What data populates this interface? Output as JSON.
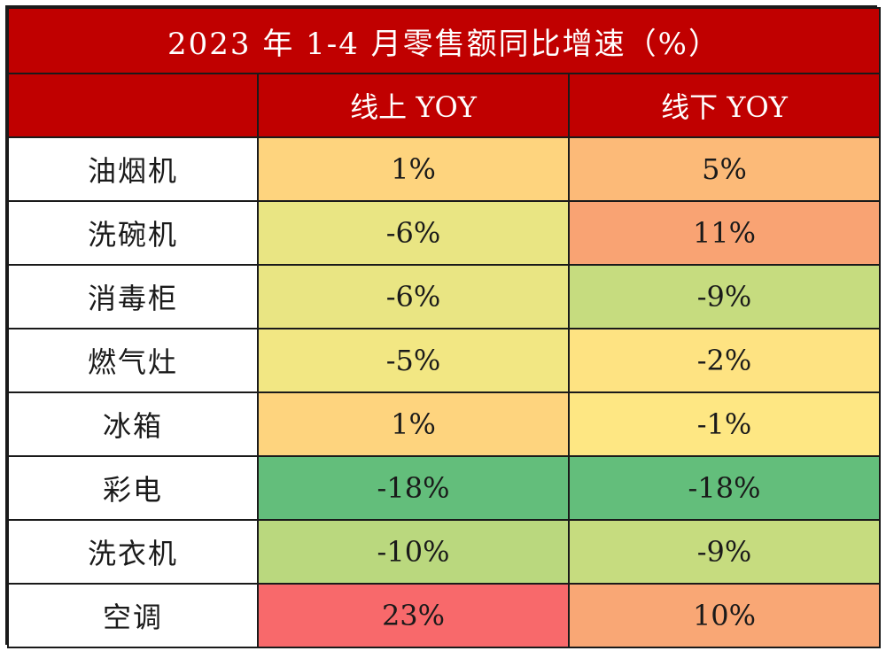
{
  "chart_data": {
    "type": "table",
    "title": "2023 年 1-4 月零售额同比增速（%）",
    "corner": "",
    "columns": [
      "线上 YOY",
      "线下 YOY"
    ],
    "rows": [
      {
        "category": "油烟机",
        "values": [
          "1%",
          "5%"
        ],
        "colors": [
          "#fed47e",
          "#fcba78"
        ]
      },
      {
        "category": "洗碗机",
        "values": [
          "-6%",
          "11%"
        ],
        "colors": [
          "#e9e583",
          "#f9a373"
        ]
      },
      {
        "category": "消毒柜",
        "values": [
          "-6%",
          "-9%"
        ],
        "colors": [
          "#e9e583",
          "#c6dc7f"
        ]
      },
      {
        "category": "燃气灶",
        "values": [
          "-5%",
          "-2%"
        ],
        "colors": [
          "#f2e783",
          "#fee382"
        ]
      },
      {
        "category": "冰箱",
        "values": [
          "1%",
          "-1%"
        ],
        "colors": [
          "#fed47e",
          "#fee783"
        ]
      },
      {
        "category": "彩电",
        "values": [
          "-18%",
          "-18%"
        ],
        "colors": [
          "#63be7b",
          "#63be7b"
        ]
      },
      {
        "category": "洗衣机",
        "values": [
          "-10%",
          "-9%"
        ],
        "colors": [
          "#bad87e",
          "#c6dc7f"
        ]
      },
      {
        "category": "空调",
        "values": [
          "23%",
          "10%"
        ],
        "colors": [
          "#f8696b",
          "#f9a775"
        ]
      }
    ]
  }
}
